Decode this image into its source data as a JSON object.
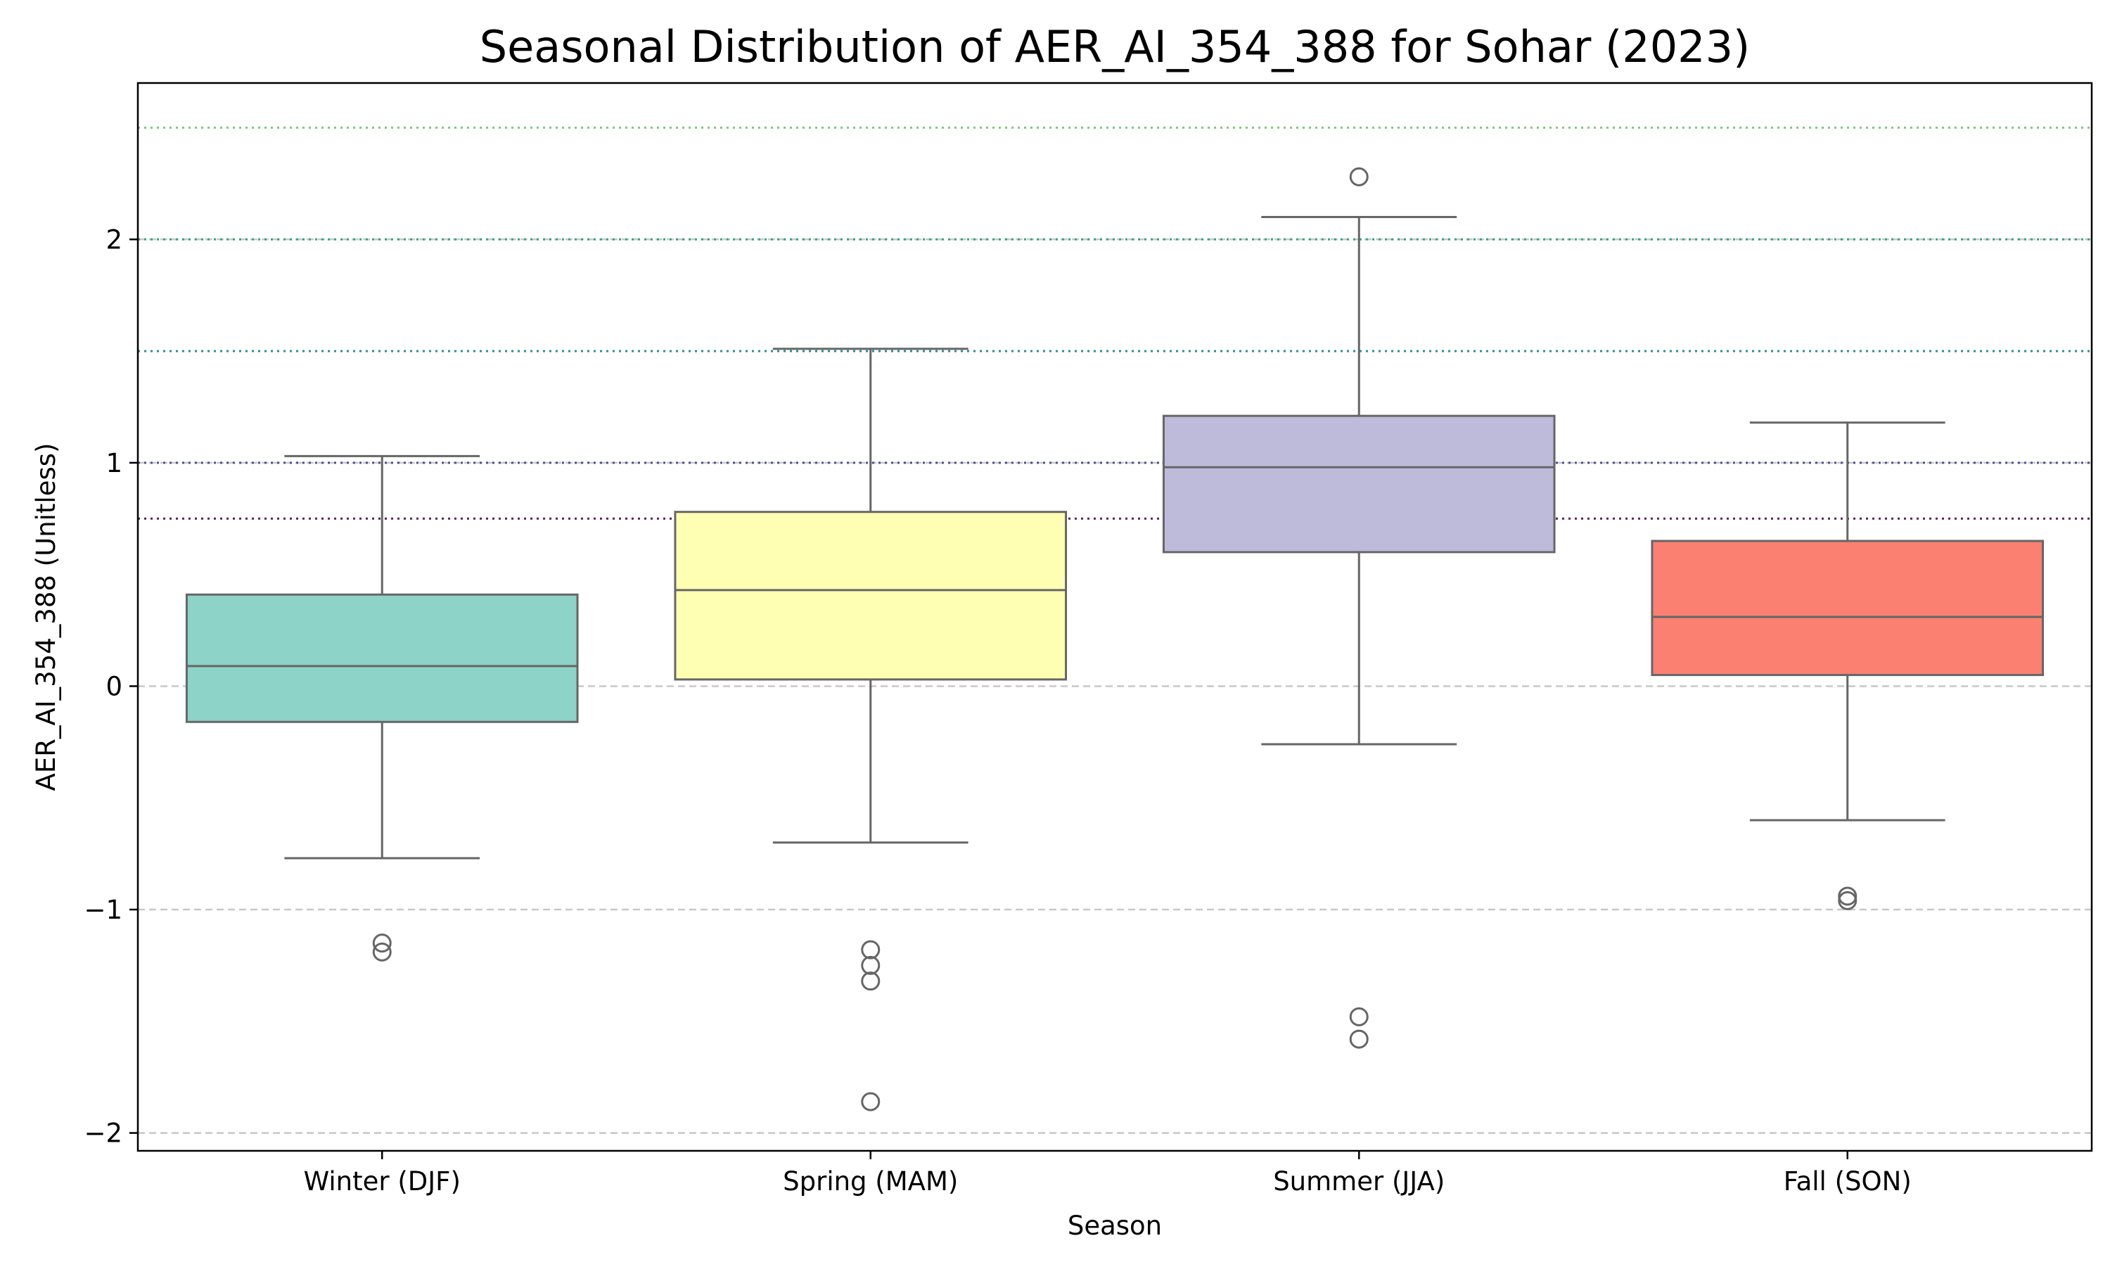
{
  "chart_data": {
    "type": "box",
    "title": "Seasonal Distribution of AER_AI_354_388 for Sohar (2023)",
    "xlabel": "Season",
    "ylabel": "AER_AI_354_388 (Unitless)",
    "ylim": [
      -2.08,
      2.7
    ],
    "yticks": [
      -2,
      -1,
      0,
      1,
      2
    ],
    "ytick_labels": [
      "−2",
      "−1",
      "0",
      "1",
      "2"
    ],
    "grid": "horizontal dashed at integer ticks",
    "reference_lines": [
      {
        "y": 2.5,
        "color": "#7fc97f",
        "style": "dotted"
      },
      {
        "y": 2.0,
        "color": "#3aa17e",
        "style": "dotted"
      },
      {
        "y": 1.5,
        "color": "#2f8c96",
        "style": "dotted"
      },
      {
        "y": 1.0,
        "color": "#4b4f8f",
        "style": "dotted"
      },
      {
        "y": 0.75,
        "color": "#5b1f5c",
        "style": "dotted"
      }
    ],
    "categories": [
      "Winter (DJF)",
      "Spring (MAM)",
      "Summer (JJA)",
      "Fall (SON)"
    ],
    "series": [
      {
        "category": "Winter (DJF)",
        "color": "#8dd3c7",
        "whisker_low": -0.77,
        "q1": -0.16,
        "median": 0.09,
        "q3": 0.41,
        "whisker_high": 1.03,
        "outliers": [
          -1.15,
          -1.19
        ]
      },
      {
        "category": "Spring (MAM)",
        "color": "#ffffb3",
        "whisker_low": -0.7,
        "q1": 0.03,
        "median": 0.43,
        "q3": 0.78,
        "whisker_high": 1.51,
        "outliers": [
          -1.18,
          -1.25,
          -1.32,
          -1.86
        ]
      },
      {
        "category": "Summer (JJA)",
        "color": "#bebada",
        "whisker_low": -0.26,
        "q1": 0.6,
        "median": 0.98,
        "q3": 1.21,
        "whisker_high": 2.1,
        "outliers": [
          2.28,
          -1.48,
          -1.58
        ]
      },
      {
        "category": "Fall (SON)",
        "color": "#fb8072",
        "whisker_low": -0.6,
        "q1": 0.05,
        "median": 0.31,
        "q3": 0.65,
        "whisker_high": 1.18,
        "outliers": [
          -0.94,
          -0.96
        ]
      }
    ]
  }
}
